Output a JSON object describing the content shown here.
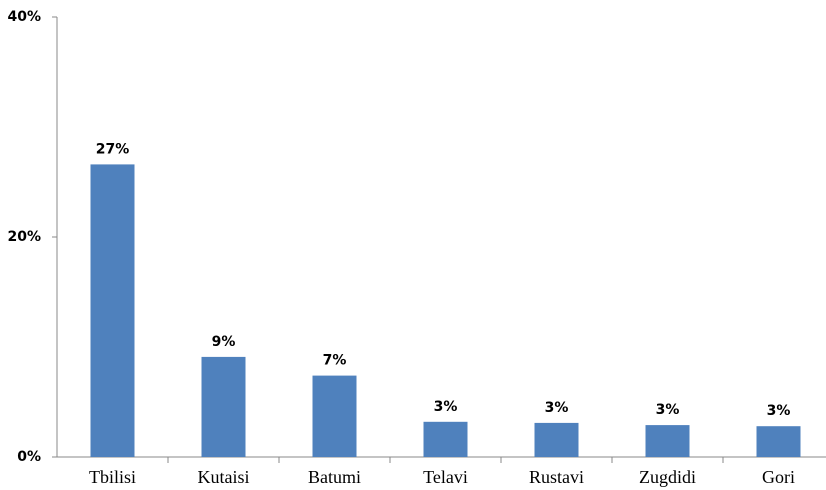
{
  "chart_data": {
    "type": "bar",
    "categories": [
      "Tbilisi",
      "Kutaisi",
      "Batumi",
      "Telavi",
      "Rustavi",
      "Zugdidi",
      "Gori"
    ],
    "values": [
      26.6,
      9.1,
      7.4,
      3.2,
      3.1,
      2.9,
      2.8
    ],
    "value_labels": [
      "27%",
      "9%",
      "7%",
      "3%",
      "3%",
      "3%",
      "3%"
    ],
    "color": "#4f81bd",
    "ylim": [
      0,
      40
    ],
    "yticks": [
      {
        "value": 0,
        "label": "0%"
      },
      {
        "value": 20,
        "label": "20%"
      },
      {
        "value": 40,
        "label": "40%"
      }
    ],
    "grid": false
  }
}
